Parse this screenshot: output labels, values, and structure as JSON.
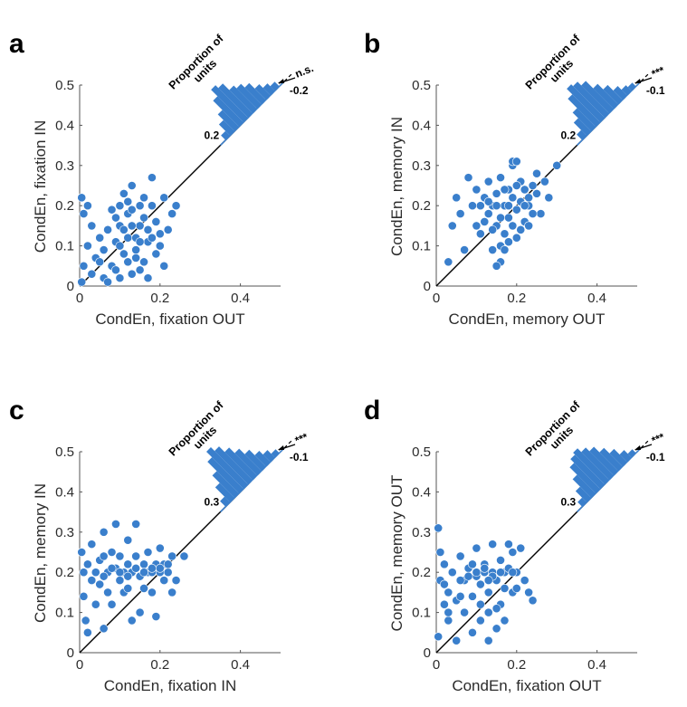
{
  "colors": {
    "marker": "#3a7fcc",
    "hist": "#3a7fcc",
    "axis": "#555555",
    "diag": "#000000"
  },
  "chart_data": [
    {
      "type": "scatter",
      "panel_label": "a",
      "xlabel": "CondEn, fixation OUT",
      "ylabel": "CondEn, fixation IN",
      "xlim": [
        0,
        0.5
      ],
      "ylim": [
        0,
        0.5
      ],
      "xticks": [
        "0",
        "0.2",
        "0.4"
      ],
      "yticks": [
        "0",
        "0.1",
        "0.2",
        "0.3",
        "0.4",
        "0.5"
      ],
      "inset": {
        "title_line1": "Proportion of",
        "title_line2": "units",
        "tick_left": "0.2",
        "tick_right": "-0.2",
        "significance": "n.s.",
        "hist": [
          0.05,
          0.12,
          0.18,
          0.28,
          0.35,
          0.32,
          0.25,
          0.22,
          0.18,
          0.12,
          0.08,
          0.05
        ]
      },
      "points": [
        [
          0.005,
          0.22
        ],
        [
          0.01,
          0.18
        ],
        [
          0.02,
          0.2
        ],
        [
          0.01,
          0.05
        ],
        [
          0.02,
          0.1
        ],
        [
          0.005,
          0.01
        ],
        [
          0.03,
          0.15
        ],
        [
          0.04,
          0.07
        ],
        [
          0.03,
          0.03
        ],
        [
          0.05,
          0.12
        ],
        [
          0.06,
          0.02
        ],
        [
          0.07,
          0.14
        ],
        [
          0.06,
          0.09
        ],
        [
          0.08,
          0.05
        ],
        [
          0.09,
          0.11
        ],
        [
          0.1,
          0.2
        ],
        [
          0.1,
          0.15
        ],
        [
          0.11,
          0.08
        ],
        [
          0.12,
          0.18
        ],
        [
          0.12,
          0.12
        ],
        [
          0.13,
          0.03
        ],
        [
          0.13,
          0.25
        ],
        [
          0.14,
          0.09
        ],
        [
          0.15,
          0.2
        ],
        [
          0.15,
          0.15
        ],
        [
          0.16,
          0.06
        ],
        [
          0.17,
          0.11
        ],
        [
          0.18,
          0.27
        ],
        [
          0.18,
          0.2
        ],
        [
          0.19,
          0.16
        ],
        [
          0.2,
          0.1
        ],
        [
          0.21,
          0.05
        ],
        [
          0.21,
          0.22
        ],
        [
          0.22,
          0.14
        ],
        [
          0.23,
          0.18
        ],
        [
          0.24,
          0.2
        ],
        [
          0.08,
          0.19
        ],
        [
          0.09,
          0.04
        ],
        [
          0.11,
          0.23
        ],
        [
          0.14,
          0.12
        ],
        [
          0.16,
          0.17
        ],
        [
          0.17,
          0.02
        ],
        [
          0.19,
          0.08
        ],
        [
          0.2,
          0.13
        ],
        [
          0.12,
          0.06
        ],
        [
          0.1,
          0.1
        ],
        [
          0.13,
          0.15
        ],
        [
          0.15,
          0.11
        ],
        [
          0.14,
          0.07
        ],
        [
          0.12,
          0.21
        ],
        [
          0.11,
          0.14
        ],
        [
          0.16,
          0.22
        ],
        [
          0.18,
          0.12
        ],
        [
          0.07,
          0.01
        ],
        [
          0.05,
          0.06
        ],
        [
          0.15,
          0.04
        ],
        [
          0.13,
          0.19
        ],
        [
          0.17,
          0.14
        ],
        [
          0.1,
          0.02
        ],
        [
          0.09,
          0.17
        ]
      ]
    },
    {
      "type": "scatter",
      "panel_label": "b",
      "xlabel": "CondEn, memory OUT",
      "ylabel": "CondEn, memory IN",
      "xlim": [
        0,
        0.5
      ],
      "ylim": [
        0,
        0.5
      ],
      "xticks": [
        "0",
        "0.2",
        "0.4"
      ],
      "yticks": [
        "0",
        "0.1",
        "0.2",
        "0.3",
        "0.4",
        "0.5"
      ],
      "inset": {
        "title_line1": "Proportion of",
        "title_line2": "units",
        "tick_left": "0.2",
        "tick_right": "-0.1",
        "significance": "***",
        "hist": [
          0.06,
          0.14,
          0.2,
          0.3,
          0.36,
          0.34,
          0.3,
          0.22,
          0.16,
          0.1,
          0.06,
          0.04
        ]
      },
      "points": [
        [
          0.03,
          0.06
        ],
        [
          0.04,
          0.15
        ],
        [
          0.05,
          0.22
        ],
        [
          0.06,
          0.18
        ],
        [
          0.07,
          0.09
        ],
        [
          0.08,
          0.27
        ],
        [
          0.09,
          0.2
        ],
        [
          0.1,
          0.24
        ],
        [
          0.1,
          0.15
        ],
        [
          0.11,
          0.13
        ],
        [
          0.12,
          0.22
        ],
        [
          0.13,
          0.18
        ],
        [
          0.13,
          0.26
        ],
        [
          0.14,
          0.2
        ],
        [
          0.14,
          0.09
        ],
        [
          0.15,
          0.23
        ],
        [
          0.15,
          0.15
        ],
        [
          0.16,
          0.27
        ],
        [
          0.16,
          0.06
        ],
        [
          0.17,
          0.2
        ],
        [
          0.17,
          0.13
        ],
        [
          0.18,
          0.24
        ],
        [
          0.18,
          0.17
        ],
        [
          0.19,
          0.3
        ],
        [
          0.19,
          0.22
        ],
        [
          0.2,
          0.19
        ],
        [
          0.2,
          0.12
        ],
        [
          0.21,
          0.26
        ],
        [
          0.21,
          0.21
        ],
        [
          0.22,
          0.16
        ],
        [
          0.22,
          0.24
        ],
        [
          0.23,
          0.2
        ],
        [
          0.24,
          0.25
        ],
        [
          0.25,
          0.23
        ],
        [
          0.26,
          0.18
        ],
        [
          0.27,
          0.26
        ],
        [
          0.28,
          0.22
        ],
        [
          0.3,
          0.3
        ],
        [
          0.12,
          0.16
        ],
        [
          0.15,
          0.2
        ],
        [
          0.16,
          0.17
        ],
        [
          0.18,
          0.11
        ],
        [
          0.19,
          0.15
        ],
        [
          0.2,
          0.25
        ],
        [
          0.17,
          0.24
        ],
        [
          0.14,
          0.14
        ],
        [
          0.13,
          0.21
        ],
        [
          0.21,
          0.14
        ],
        [
          0.23,
          0.15
        ],
        [
          0.19,
          0.31
        ],
        [
          0.2,
          0.31
        ],
        [
          0.15,
          0.05
        ],
        [
          0.16,
          0.1
        ],
        [
          0.17,
          0.09
        ],
        [
          0.24,
          0.18
        ],
        [
          0.25,
          0.28
        ],
        [
          0.11,
          0.2
        ],
        [
          0.18,
          0.2
        ],
        [
          0.22,
          0.2
        ],
        [
          0.23,
          0.22
        ]
      ]
    },
    {
      "type": "scatter",
      "panel_label": "c",
      "xlabel": "CondEn, fixation IN",
      "ylabel": "CondEn, memory IN",
      "xlim": [
        0,
        0.5
      ],
      "ylim": [
        0,
        0.5
      ],
      "xticks": [
        "0",
        "0.2",
        "0.4"
      ],
      "yticks": [
        "0",
        "0.1",
        "0.2",
        "0.3",
        "0.4",
        "0.5"
      ],
      "inset": {
        "title_line1": "Proportion of",
        "title_line2": "units",
        "tick_left": "0.3",
        "tick_right": "-0.1",
        "significance": "***",
        "hist": [
          0.06,
          0.16,
          0.24,
          0.34,
          0.4,
          0.36,
          0.3,
          0.24,
          0.18,
          0.12,
          0.08,
          0.04
        ]
      },
      "points": [
        [
          0.005,
          0.25
        ],
        [
          0.01,
          0.2
        ],
        [
          0.01,
          0.14
        ],
        [
          0.015,
          0.08
        ],
        [
          0.02,
          0.05
        ],
        [
          0.02,
          0.22
        ],
        [
          0.03,
          0.18
        ],
        [
          0.03,
          0.27
        ],
        [
          0.04,
          0.12
        ],
        [
          0.05,
          0.23
        ],
        [
          0.05,
          0.17
        ],
        [
          0.06,
          0.06
        ],
        [
          0.06,
          0.3
        ],
        [
          0.07,
          0.2
        ],
        [
          0.07,
          0.15
        ],
        [
          0.08,
          0.25
        ],
        [
          0.08,
          0.12
        ],
        [
          0.09,
          0.21
        ],
        [
          0.09,
          0.32
        ],
        [
          0.1,
          0.18
        ],
        [
          0.1,
          0.24
        ],
        [
          0.11,
          0.2
        ],
        [
          0.11,
          0.15
        ],
        [
          0.12,
          0.28
        ],
        [
          0.12,
          0.22
        ],
        [
          0.13,
          0.2
        ],
        [
          0.13,
          0.08
        ],
        [
          0.14,
          0.32
        ],
        [
          0.14,
          0.24
        ],
        [
          0.15,
          0.19
        ],
        [
          0.15,
          0.1
        ],
        [
          0.16,
          0.22
        ],
        [
          0.16,
          0.16
        ],
        [
          0.17,
          0.2
        ],
        [
          0.17,
          0.25
        ],
        [
          0.18,
          0.2
        ],
        [
          0.18,
          0.15
        ],
        [
          0.19,
          0.22
        ],
        [
          0.19,
          0.09
        ],
        [
          0.2,
          0.2
        ],
        [
          0.2,
          0.26
        ],
        [
          0.21,
          0.18
        ],
        [
          0.21,
          0.22
        ],
        [
          0.22,
          0.2
        ],
        [
          0.23,
          0.15
        ],
        [
          0.23,
          0.24
        ],
        [
          0.24,
          0.18
        ],
        [
          0.26,
          0.24
        ],
        [
          0.04,
          0.2
        ],
        [
          0.06,
          0.19
        ],
        [
          0.08,
          0.21
        ],
        [
          0.1,
          0.2
        ],
        [
          0.12,
          0.19
        ],
        [
          0.14,
          0.21
        ],
        [
          0.16,
          0.2
        ],
        [
          0.18,
          0.21
        ],
        [
          0.2,
          0.21
        ],
        [
          0.22,
          0.22
        ],
        [
          0.12,
          0.16
        ],
        [
          0.06,
          0.24
        ]
      ]
    },
    {
      "type": "scatter",
      "panel_label": "d",
      "xlabel": "CondEn, fixation OUT",
      "ylabel": "CondEn, memory OUT",
      "xlim": [
        0,
        0.5
      ],
      "ylim": [
        0,
        0.5
      ],
      "xticks": [
        "0",
        "0.2",
        "0.4"
      ],
      "yticks": [
        "0",
        "0.1",
        "0.2",
        "0.3",
        "0.4",
        "0.5"
      ],
      "inset": {
        "title_line1": "Proportion of",
        "title_line2": "units",
        "tick_left": "0.3",
        "tick_right": "-0.1",
        "significance": "***",
        "hist": [
          0.05,
          0.12,
          0.2,
          0.28,
          0.32,
          0.34,
          0.3,
          0.26,
          0.2,
          0.14,
          0.08,
          0.04
        ]
      },
      "points": [
        [
          0.005,
          0.31
        ],
        [
          0.005,
          0.04
        ],
        [
          0.01,
          0.25
        ],
        [
          0.01,
          0.18
        ],
        [
          0.02,
          0.12
        ],
        [
          0.02,
          0.22
        ],
        [
          0.03,
          0.08
        ],
        [
          0.03,
          0.15
        ],
        [
          0.04,
          0.2
        ],
        [
          0.05,
          0.03
        ],
        [
          0.05,
          0.13
        ],
        [
          0.06,
          0.24
        ],
        [
          0.07,
          0.18
        ],
        [
          0.07,
          0.1
        ],
        [
          0.08,
          0.21
        ],
        [
          0.09,
          0.14
        ],
        [
          0.09,
          0.05
        ],
        [
          0.1,
          0.19
        ],
        [
          0.1,
          0.26
        ],
        [
          0.11,
          0.17
        ],
        [
          0.11,
          0.08
        ],
        [
          0.12,
          0.22
        ],
        [
          0.12,
          0.2
        ],
        [
          0.13,
          0.15
        ],
        [
          0.13,
          0.1
        ],
        [
          0.14,
          0.27
        ],
        [
          0.14,
          0.2
        ],
        [
          0.15,
          0.18
        ],
        [
          0.15,
          0.06
        ],
        [
          0.16,
          0.23
        ],
        [
          0.16,
          0.12
        ],
        [
          0.17,
          0.2
        ],
        [
          0.17,
          0.16
        ],
        [
          0.18,
          0.27
        ],
        [
          0.18,
          0.21
        ],
        [
          0.19,
          0.25
        ],
        [
          0.19,
          0.15
        ],
        [
          0.2,
          0.2
        ],
        [
          0.21,
          0.26
        ],
        [
          0.22,
          0.18
        ],
        [
          0.23,
          0.15
        ],
        [
          0.24,
          0.13
        ],
        [
          0.04,
          0.2
        ],
        [
          0.06,
          0.18
        ],
        [
          0.08,
          0.19
        ],
        [
          0.1,
          0.2
        ],
        [
          0.12,
          0.21
        ],
        [
          0.14,
          0.19
        ],
        [
          0.16,
          0.2
        ],
        [
          0.02,
          0.17
        ],
        [
          0.13,
          0.03
        ],
        [
          0.11,
          0.12
        ],
        [
          0.09,
          0.22
        ],
        [
          0.15,
          0.11
        ],
        [
          0.17,
          0.08
        ],
        [
          0.03,
          0.1
        ],
        [
          0.06,
          0.14
        ],
        [
          0.2,
          0.16
        ],
        [
          0.13,
          0.18
        ],
        [
          0.19,
          0.2
        ]
      ]
    }
  ]
}
